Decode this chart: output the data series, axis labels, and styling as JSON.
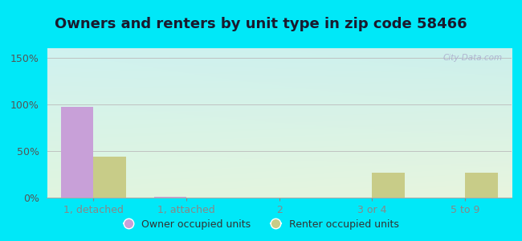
{
  "title": "Owners and renters by unit type in zip code 58466",
  "categories": [
    "1, detached",
    "1, attached",
    "2",
    "3 or 4",
    "5 to 9"
  ],
  "owner_values": [
    97,
    1,
    0,
    0,
    0
  ],
  "renter_values": [
    44,
    0,
    0,
    27,
    27
  ],
  "owner_color": "#c8a0d8",
  "renter_color": "#c8cc88",
  "yticks": [
    0,
    50,
    100,
    150
  ],
  "ylim": [
    0,
    160
  ],
  "bar_width": 0.35,
  "bg_topleft": "#d0f0f0",
  "bg_topright": "#c8eee8",
  "bg_bottomleft": "#dff5df",
  "bg_bottomright": "#e8f5e0",
  "outer_bg": "#00e8f8",
  "title_fontsize": 13,
  "axis_label_fontsize": 9,
  "legend_fontsize": 9,
  "watermark": "City-Data.com"
}
